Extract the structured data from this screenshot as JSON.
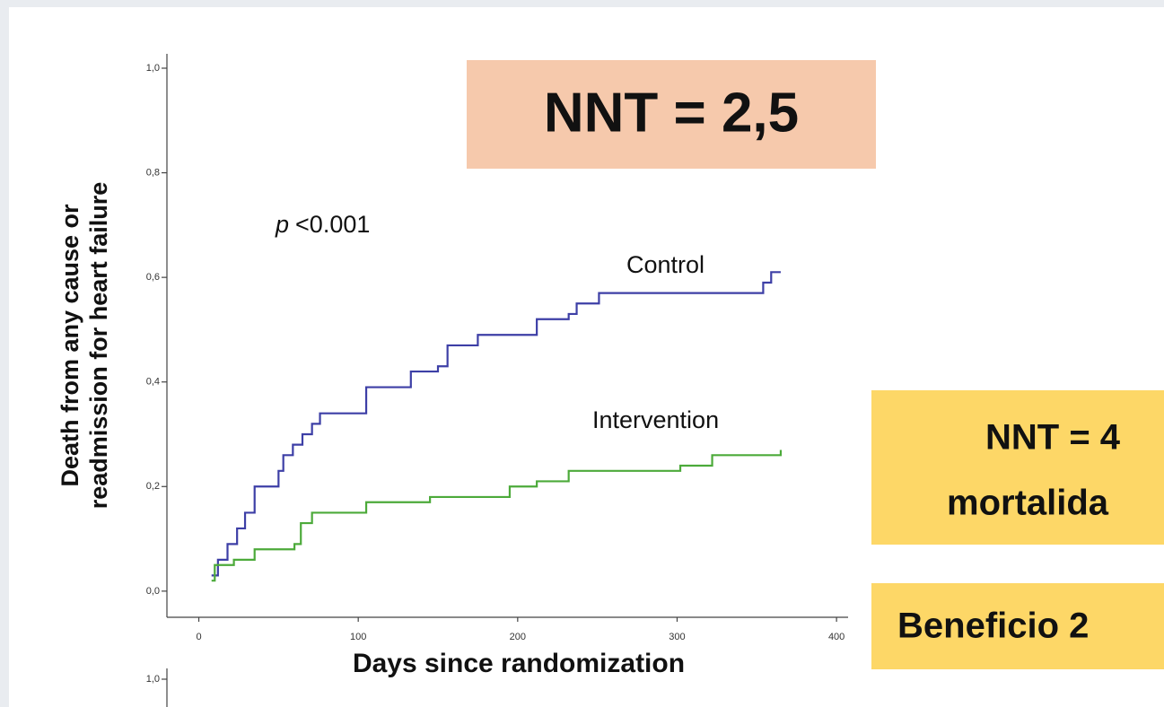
{
  "chart_data": {
    "type": "line",
    "step": "post",
    "y_label_lines": [
      "Death from any cause or",
      "readmission for heart failure"
    ],
    "x_label": "Days since randomization",
    "xlim": [
      -20,
      405
    ],
    "xticks": [
      0,
      100,
      200,
      300,
      400
    ],
    "ylim": [
      -0.05,
      1.0
    ],
    "yticks": [
      {
        "value": 0,
        "label": "0,0"
      },
      {
        "value": 0.2,
        "label": "0,2"
      },
      {
        "value": 0.4,
        "label": "0,4"
      },
      {
        "value": 0.6,
        "label": "0,6"
      },
      {
        "value": 0.8,
        "label": "0,8"
      },
      {
        "value": 1.0,
        "label": "1,0"
      }
    ],
    "p_value": {
      "symbol": "p",
      "text": "<0.001"
    },
    "series": [
      {
        "name": "Control",
        "color": "#3d3fa6",
        "x": [
          8,
          12,
          18,
          24,
          29,
          35,
          46,
          50,
          53,
          59,
          65,
          71,
          76,
          100,
          105,
          128,
          133,
          150,
          156,
          173,
          175,
          206,
          212,
          232,
          237,
          251,
          350,
          354,
          359,
          365
        ],
        "values": [
          0.03,
          0.06,
          0.09,
          0.12,
          0.15,
          0.2,
          0.2,
          0.23,
          0.26,
          0.28,
          0.3,
          0.32,
          0.34,
          0.34,
          0.39,
          0.39,
          0.42,
          0.43,
          0.47,
          0.47,
          0.49,
          0.49,
          0.52,
          0.53,
          0.55,
          0.57,
          0.57,
          0.59,
          0.61,
          0.61
        ]
      },
      {
        "name": "Intervention",
        "color": "#4caa3a",
        "x": [
          8,
          10,
          22,
          35,
          60,
          64,
          71,
          105,
          145,
          195,
          212,
          232,
          302,
          322,
          365
        ],
        "values": [
          0.02,
          0.05,
          0.06,
          0.08,
          0.09,
          0.13,
          0.15,
          0.17,
          0.18,
          0.2,
          0.21,
          0.23,
          0.24,
          0.26,
          0.27
        ]
      }
    ],
    "next_panel": {
      "ytick_label": "1,0"
    }
  },
  "callouts": {
    "main": "NNT = 2,5",
    "mortality_lines": [
      "NNT = 4",
      "mortalida"
    ],
    "benefit": "Beneficio 2"
  }
}
